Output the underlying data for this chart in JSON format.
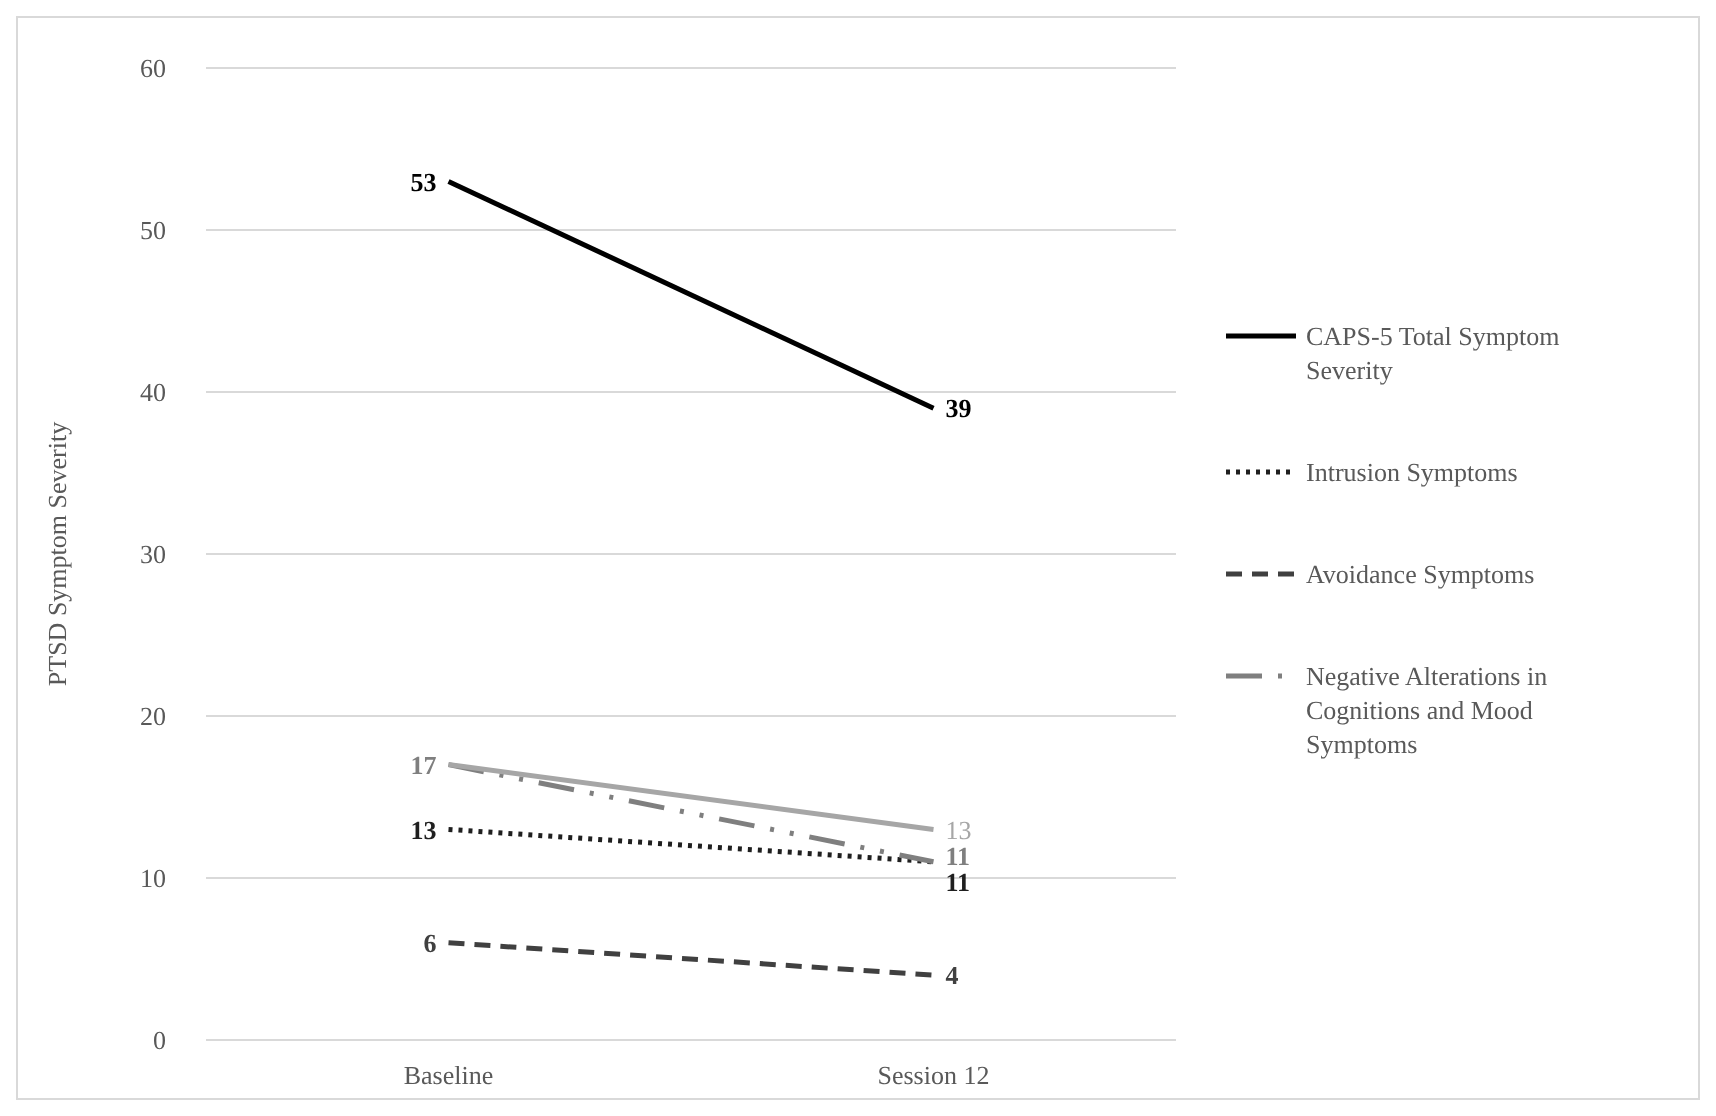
{
  "chart_data": {
    "type": "line",
    "ylabel": "PTSD Symptom Severity",
    "categories": [
      "Baseline",
      "Session 12"
    ],
    "ylim": [
      0,
      60
    ],
    "yticks": [
      0,
      10,
      20,
      30,
      40,
      50,
      60
    ],
    "grid": "y",
    "legend": "right",
    "marker": "none",
    "series": [
      {
        "name": "CAPS-5 Total Symptom Severity",
        "color": "#000000",
        "line_style": "solid",
        "values": [
          53,
          39
        ],
        "value_labels": [
          "53",
          "39"
        ]
      },
      {
        "name": "Intrusion Symptoms",
        "color": "#1f1f1f",
        "line_style": "dotted",
        "values": [
          13,
          11
        ],
        "value_labels": [
          "13",
          "11"
        ]
      },
      {
        "name": "Avoidance Symptoms",
        "color": "#404040",
        "line_style": "dashed",
        "values": [
          6,
          4
        ],
        "value_labels": [
          "6",
          "4"
        ]
      },
      {
        "name": "Negative Alterations in Cognitions and Mood Symptoms",
        "color": "#7f7f7f",
        "line_style": "dashdot",
        "values": [
          17,
          11
        ],
        "value_labels": [
          "17",
          "11"
        ]
      },
      {
        "color": "#a6a6a6",
        "line_style": "solid",
        "values": [
          17,
          13
        ],
        "value_labels": [
          null,
          "13"
        ]
      }
    ]
  }
}
